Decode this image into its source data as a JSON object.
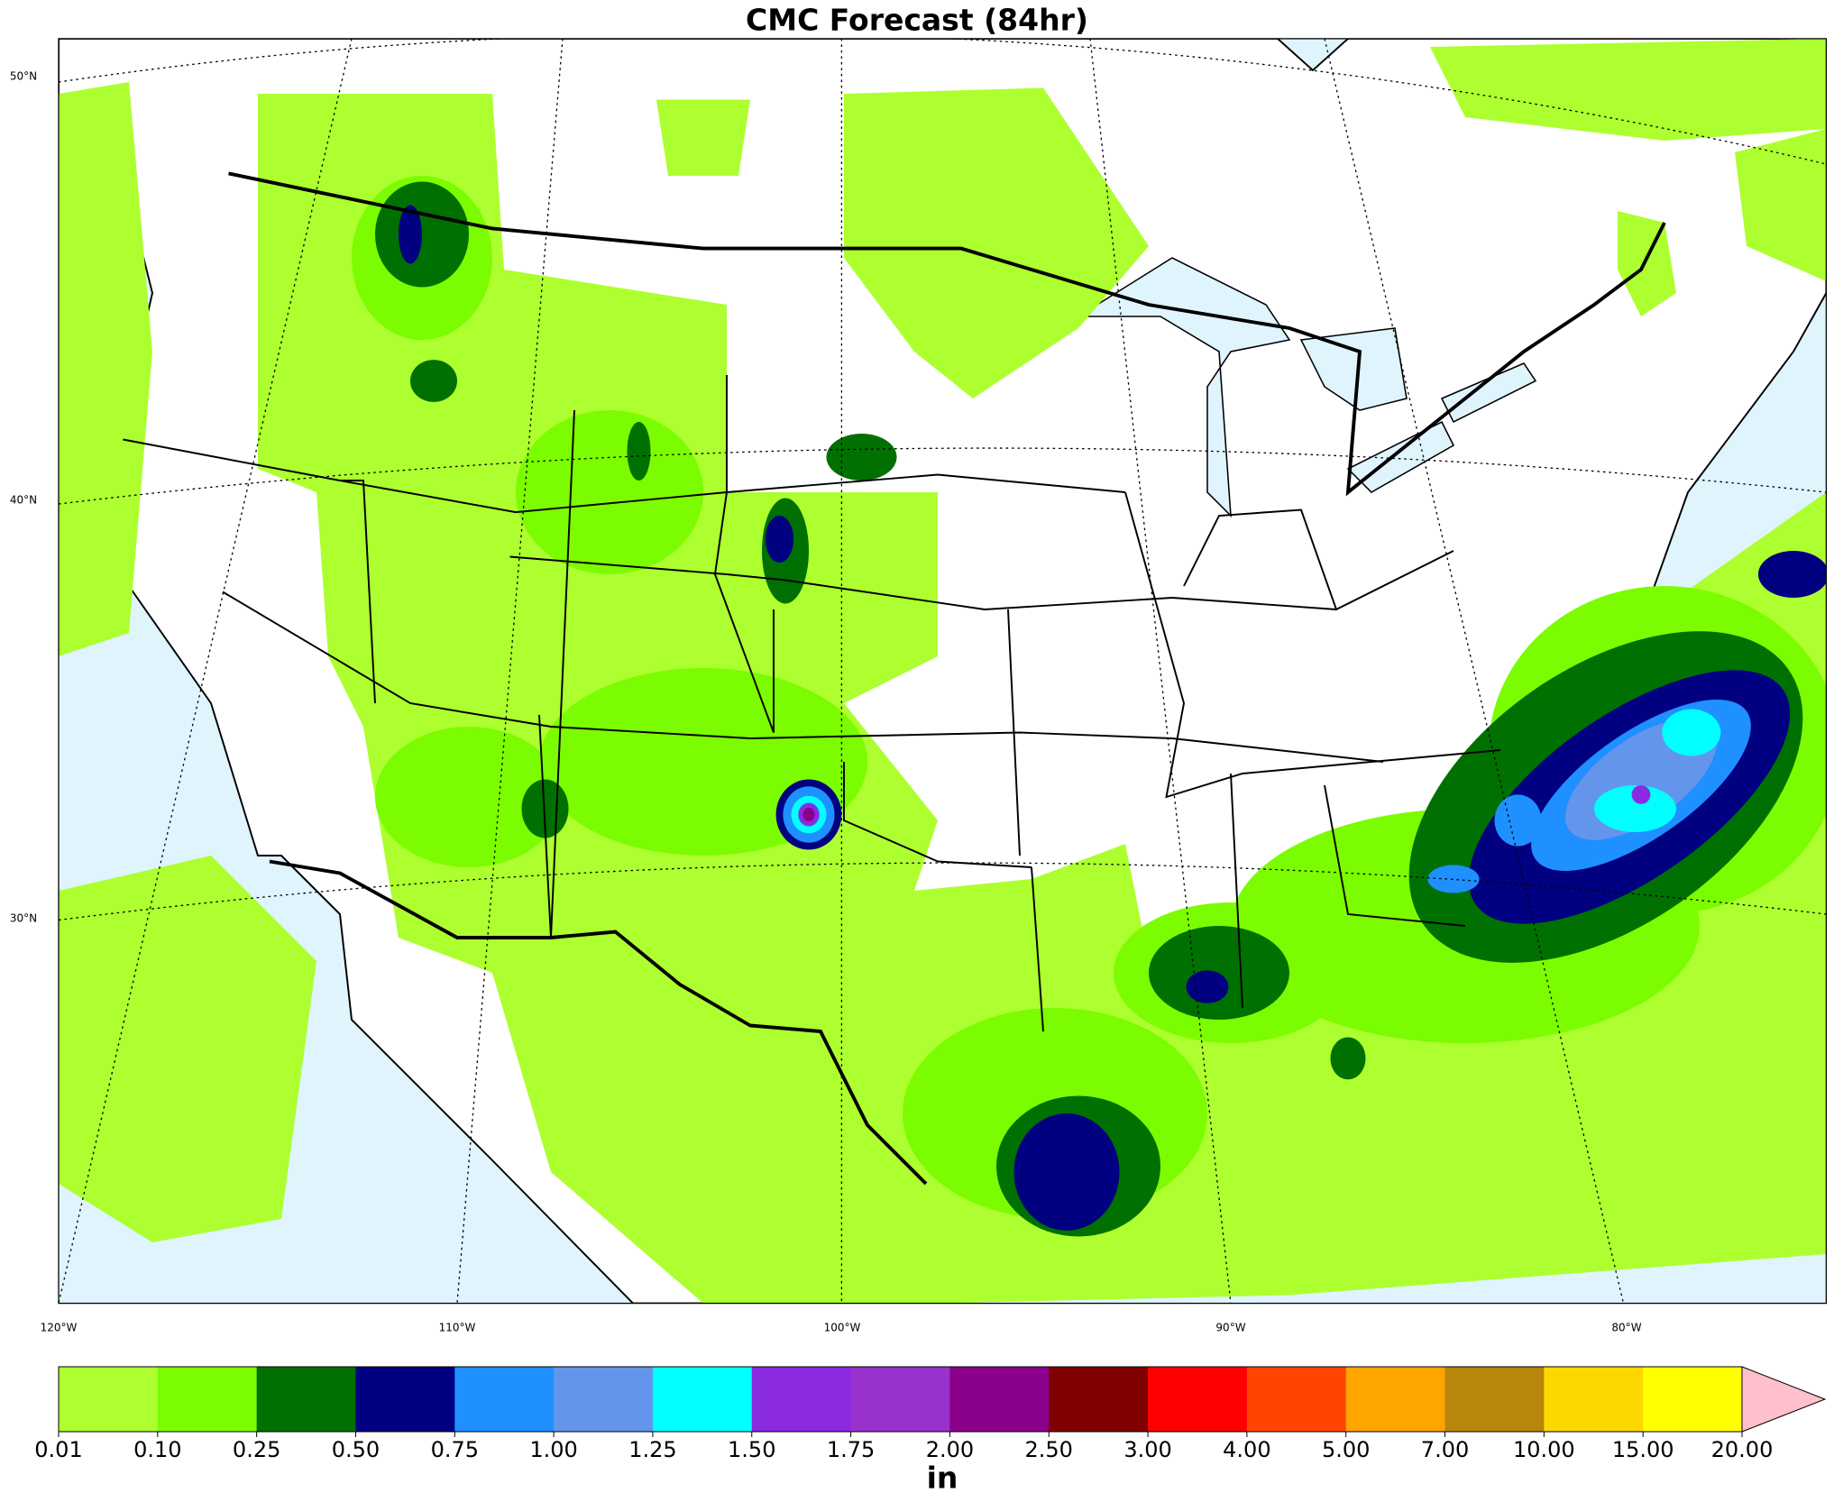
{
  "title": "CMC Forecast (84hr)",
  "latitude_labels": [
    "50°N",
    "40°N",
    "30°N"
  ],
  "longitude_labels": [
    "120°W",
    "110°W",
    "100°W",
    "90°W",
    "80°W"
  ],
  "colorbar": {
    "unit": "in",
    "levels": [
      0.01,
      {
        "value": 0.1,
        "label": "0.10"
      },
      0.25,
      {
        "value": 0.5,
        "label": "0.50"
      },
      0.75,
      {
        "value": 1,
        "label": "1.00"
      },
      1.25,
      {
        "value": 1.5,
        "label": "1.50"
      },
      1.75,
      {
        "value": 2,
        "label": "2.00"
      },
      {
        "value": 2.5,
        "label": "2.50"
      },
      {
        "value": 3,
        "label": "3.00"
      },
      {
        "value": 4,
        "label": "4.00"
      },
      {
        "value": 5,
        "label": "5.00"
      },
      {
        "value": 7,
        "label": "7.00"
      },
      {
        "value": 10,
        "label": "10.00"
      },
      {
        "value": 15,
        "label": "15.00"
      },
      {
        "value": 20,
        "label": "20.00"
      }
    ],
    "colors": [
      "#adff2f",
      "#7cfc00",
      "#007000",
      "#000080",
      "#1e90ff",
      "#6495ed",
      "#00ffff",
      "#8a2be2",
      "#9932cc",
      "#8b008b",
      "#800000",
      "#ff0000",
      "#ff4500",
      "#ffa500",
      "#b8860b",
      "#ffd700",
      "#ffff00"
    ],
    "extend_color": "#ffc0cb"
  }
}
